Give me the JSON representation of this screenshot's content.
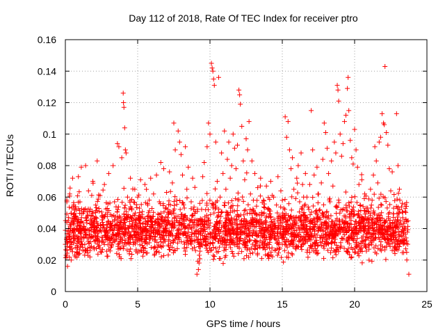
{
  "chart_data": {
    "type": "scatter",
    "title": "Day 112 of 2018, Rate Of TEC Index for receiver ptro",
    "xlabel": "GPS time / hours",
    "ylabel": "ROTI / TECUs",
    "xlim": [
      0,
      25
    ],
    "ylim": [
      0,
      0.16
    ],
    "grid": true,
    "marker": "+",
    "color": "#ff0000",
    "x_ticks": [
      0,
      5,
      10,
      15,
      20,
      25
    ],
    "x_tick_labels": [
      "0",
      "5",
      "10",
      "15",
      "20",
      "25"
    ],
    "y_ticks": [
      0,
      0.02,
      0.04,
      0.06,
      0.08,
      0.1,
      0.12,
      0.14,
      0.16
    ],
    "y_tick_labels": [
      "0",
      "0.02",
      "0.04",
      "0.06",
      "0.08",
      "0.1",
      "0.12",
      "0.14",
      "0.16"
    ],
    "series": [
      {
        "name": "ROTI",
        "points": [
          [
            0.0,
            0.03
          ],
          [
            0.1,
            0.058
          ],
          [
            0.15,
            0.016
          ],
          [
            0.2,
            0.045
          ],
          [
            0.3,
            0.062
          ],
          [
            0.4,
            0.02
          ],
          [
            0.5,
            0.072
          ],
          [
            0.6,
            0.035
          ],
          [
            0.7,
            0.048
          ],
          [
            0.8,
            0.025
          ],
          [
            0.9,
            0.073
          ],
          [
            1.0,
            0.04
          ],
          [
            1.1,
            0.079
          ],
          [
            1.2,
            0.028
          ],
          [
            1.3,
            0.052
          ],
          [
            1.4,
            0.08
          ],
          [
            1.5,
            0.034
          ],
          [
            1.6,
            0.064
          ],
          [
            1.7,
            0.022
          ],
          [
            1.8,
            0.045
          ],
          [
            1.9,
            0.07
          ],
          [
            2.0,
            0.032
          ],
          [
            2.1,
            0.055
          ],
          [
            2.2,
            0.083
          ],
          [
            2.3,
            0.038
          ],
          [
            2.4,
            0.061
          ],
          [
            2.5,
            0.025
          ],
          [
            2.6,
            0.047
          ],
          [
            2.7,
            0.068
          ],
          [
            2.8,
            0.033
          ],
          [
            2.9,
            0.05
          ],
          [
            3.0,
            0.075
          ],
          [
            3.1,
            0.041
          ],
          [
            3.2,
            0.029
          ],
          [
            3.3,
            0.08
          ],
          [
            3.4,
            0.057
          ],
          [
            3.5,
            0.036
          ],
          [
            3.6,
            0.094
          ],
          [
            3.7,
            0.092
          ],
          [
            3.8,
            0.044
          ],
          [
            3.9,
            0.085
          ],
          [
            4.0,
            0.126
          ],
          [
            4.02,
            0.12
          ],
          [
            4.05,
            0.117
          ],
          [
            4.1,
            0.104
          ],
          [
            4.15,
            0.09
          ],
          [
            4.2,
            0.088
          ],
          [
            4.3,
            0.06
          ],
          [
            4.4,
            0.038
          ],
          [
            4.5,
            0.072
          ],
          [
            4.6,
            0.052
          ],
          [
            4.7,
            0.03
          ],
          [
            4.8,
            0.065
          ],
          [
            4.9,
            0.043
          ],
          [
            5.0,
            0.06
          ],
          [
            5.1,
            0.035
          ],
          [
            5.2,
            0.071
          ],
          [
            5.3,
            0.049
          ],
          [
            5.4,
            0.025
          ],
          [
            5.5,
            0.068
          ],
          [
            5.6,
            0.04
          ],
          [
            5.7,
            0.055
          ],
          [
            5.8,
            0.031
          ],
          [
            5.9,
            0.072
          ],
          [
            6.0,
            0.046
          ],
          [
            6.1,
            0.062
          ],
          [
            6.2,
            0.028
          ],
          [
            6.3,
            0.074
          ],
          [
            6.4,
            0.038
          ],
          [
            6.5,
            0.057
          ],
          [
            6.6,
            0.082
          ],
          [
            6.7,
            0.045
          ],
          [
            6.8,
            0.078
          ],
          [
            6.9,
            0.032
          ],
          [
            7.0,
            0.063
          ],
          [
            7.1,
            0.05
          ],
          [
            7.2,
            0.076
          ],
          [
            7.3,
            0.036
          ],
          [
            7.4,
            0.069
          ],
          [
            7.5,
            0.107
          ],
          [
            7.6,
            0.09
          ],
          [
            7.7,
            0.058
          ],
          [
            7.8,
            0.102
          ],
          [
            7.9,
            0.095
          ],
          [
            8.0,
            0.087
          ],
          [
            8.1,
            0.074
          ],
          [
            8.2,
            0.048
          ],
          [
            8.3,
            0.092
          ],
          [
            8.4,
            0.065
          ],
          [
            8.5,
            0.079
          ],
          [
            8.6,
            0.034
          ],
          [
            8.7,
            0.057
          ],
          [
            8.8,
            0.072
          ],
          [
            8.9,
            0.041
          ],
          [
            9.0,
            0.026
          ],
          [
            9.1,
            0.011
          ],
          [
            9.2,
            0.014
          ],
          [
            9.3,
            0.056
          ],
          [
            9.4,
            0.039
          ],
          [
            9.5,
            0.073
          ],
          [
            9.6,
            0.082
          ],
          [
            9.7,
            0.052
          ],
          [
            9.8,
            0.092
          ],
          [
            9.9,
            0.107
          ],
          [
            10.0,
            0.1
          ],
          [
            10.1,
            0.145
          ],
          [
            10.15,
            0.142
          ],
          [
            10.2,
            0.14
          ],
          [
            10.25,
            0.135
          ],
          [
            10.3,
            0.131
          ],
          [
            10.4,
            0.095
          ],
          [
            10.5,
            0.07
          ],
          [
            10.6,
            0.136
          ],
          [
            10.7,
            0.06
          ],
          [
            10.8,
            0.088
          ],
          [
            10.9,
            0.075
          ],
          [
            11.0,
            0.102
          ],
          [
            11.1,
            0.065
          ],
          [
            11.2,
            0.084
          ],
          [
            11.3,
            0.095
          ],
          [
            11.4,
            0.072
          ],
          [
            11.5,
            0.08
          ],
          [
            11.6,
            0.1
          ],
          [
            11.7,
            0.091
          ],
          [
            11.8,
            0.078
          ],
          [
            11.9,
            0.093
          ],
          [
            12.0,
            0.128
          ],
          [
            12.05,
            0.125
          ],
          [
            12.1,
            0.119
          ],
          [
            12.2,
            0.105
          ],
          [
            12.3,
            0.083
          ],
          [
            12.4,
            0.071
          ],
          [
            12.5,
            0.097
          ],
          [
            12.6,
            0.09
          ],
          [
            12.7,
            0.108
          ],
          [
            12.8,
            0.062
          ],
          [
            12.9,
            0.083
          ],
          [
            13.0,
            0.058
          ],
          [
            13.1,
            0.075
          ],
          [
            13.2,
            0.036
          ],
          [
            13.3,
            0.066
          ],
          [
            13.4,
            0.049
          ],
          [
            13.5,
            0.072
          ],
          [
            13.6,
            0.031
          ],
          [
            13.7,
            0.058
          ],
          [
            13.8,
            0.044
          ],
          [
            13.9,
            0.067
          ],
          [
            14.0,
            0.023
          ],
          [
            14.1,
            0.052
          ],
          [
            14.2,
            0.07
          ],
          [
            14.3,
            0.038
          ],
          [
            14.4,
            0.06
          ],
          [
            14.5,
            0.026
          ],
          [
            14.6,
            0.055
          ],
          [
            14.7,
            0.073
          ],
          [
            14.8,
            0.042
          ],
          [
            14.9,
            0.064
          ],
          [
            15.0,
            0.03
          ],
          [
            15.1,
            0.053
          ],
          [
            15.2,
            0.111
          ],
          [
            15.3,
            0.098
          ],
          [
            15.4,
            0.108
          ],
          [
            15.5,
            0.09
          ],
          [
            15.6,
            0.078
          ],
          [
            15.7,
            0.085
          ],
          [
            15.8,
            0.065
          ],
          [
            15.9,
            0.047
          ],
          [
            16.0,
            0.072
          ],
          [
            16.1,
            0.08
          ],
          [
            16.2,
            0.057
          ],
          [
            16.3,
            0.088
          ],
          [
            16.4,
            0.068
          ],
          [
            16.5,
            0.045
          ],
          [
            16.6,
            0.075
          ],
          [
            16.7,
            0.06
          ],
          [
            16.8,
            0.036
          ],
          [
            16.9,
            0.068
          ],
          [
            17.0,
            0.115
          ],
          [
            17.1,
            0.09
          ],
          [
            17.2,
            0.074
          ],
          [
            17.3,
            0.051
          ],
          [
            17.4,
            0.079
          ],
          [
            17.5,
            0.062
          ],
          [
            17.6,
            0.04
          ],
          [
            17.7,
            0.069
          ],
          [
            17.8,
            0.084
          ],
          [
            17.9,
            0.107
          ],
          [
            18.0,
            0.101
          ],
          [
            18.1,
            0.091
          ],
          [
            18.2,
            0.075
          ],
          [
            18.3,
            0.057
          ],
          [
            18.4,
            0.083
          ],
          [
            18.5,
            0.067
          ],
          [
            18.6,
            0.095
          ],
          [
            18.7,
            0.088
          ],
          [
            18.8,
            0.131
          ],
          [
            18.85,
            0.128
          ],
          [
            18.9,
            0.121
          ],
          [
            19.0,
            0.1
          ],
          [
            19.1,
            0.086
          ],
          [
            19.2,
            0.094
          ],
          [
            19.3,
            0.108
          ],
          [
            19.4,
            0.112
          ],
          [
            19.5,
            0.129
          ],
          [
            19.55,
            0.136
          ],
          [
            19.6,
            0.115
          ],
          [
            19.7,
            0.096
          ],
          [
            19.8,
            0.085
          ],
          [
            19.9,
            0.081
          ],
          [
            20.0,
            0.103
          ],
          [
            20.1,
            0.09
          ],
          [
            20.2,
            0.079
          ],
          [
            20.3,
            0.068
          ],
          [
            20.4,
            0.055
          ],
          [
            20.5,
            0.071
          ],
          [
            20.6,
            0.046
          ],
          [
            20.7,
            0.062
          ],
          [
            20.8,
            0.028
          ],
          [
            20.9,
            0.053
          ],
          [
            21.0,
            0.037
          ],
          [
            21.1,
            0.065
          ],
          [
            21.2,
            0.044
          ],
          [
            21.3,
            0.074
          ],
          [
            21.4,
            0.092
          ],
          [
            21.5,
            0.083
          ],
          [
            21.6,
            0.069
          ],
          [
            21.7,
            0.095
          ],
          [
            21.8,
            0.098
          ],
          [
            21.9,
            0.113
          ],
          [
            22.0,
            0.107
          ],
          [
            22.05,
            0.106
          ],
          [
            22.1,
            0.143
          ],
          [
            22.2,
            0.101
          ],
          [
            22.3,
            0.093
          ],
          [
            22.4,
            0.078
          ],
          [
            22.5,
            0.064
          ],
          [
            22.6,
            0.076
          ],
          [
            22.7,
            0.053
          ],
          [
            22.8,
            0.038
          ],
          [
            22.9,
            0.113
          ],
          [
            23.0,
            0.08
          ],
          [
            23.1,
            0.065
          ],
          [
            23.2,
            0.043
          ],
          [
            23.3,
            0.056
          ],
          [
            23.4,
            0.031
          ],
          [
            23.5,
            0.051
          ],
          [
            23.6,
            0.025
          ],
          [
            23.7,
            0.045
          ],
          [
            23.75,
            0.011
          ]
        ]
      }
    ]
  }
}
